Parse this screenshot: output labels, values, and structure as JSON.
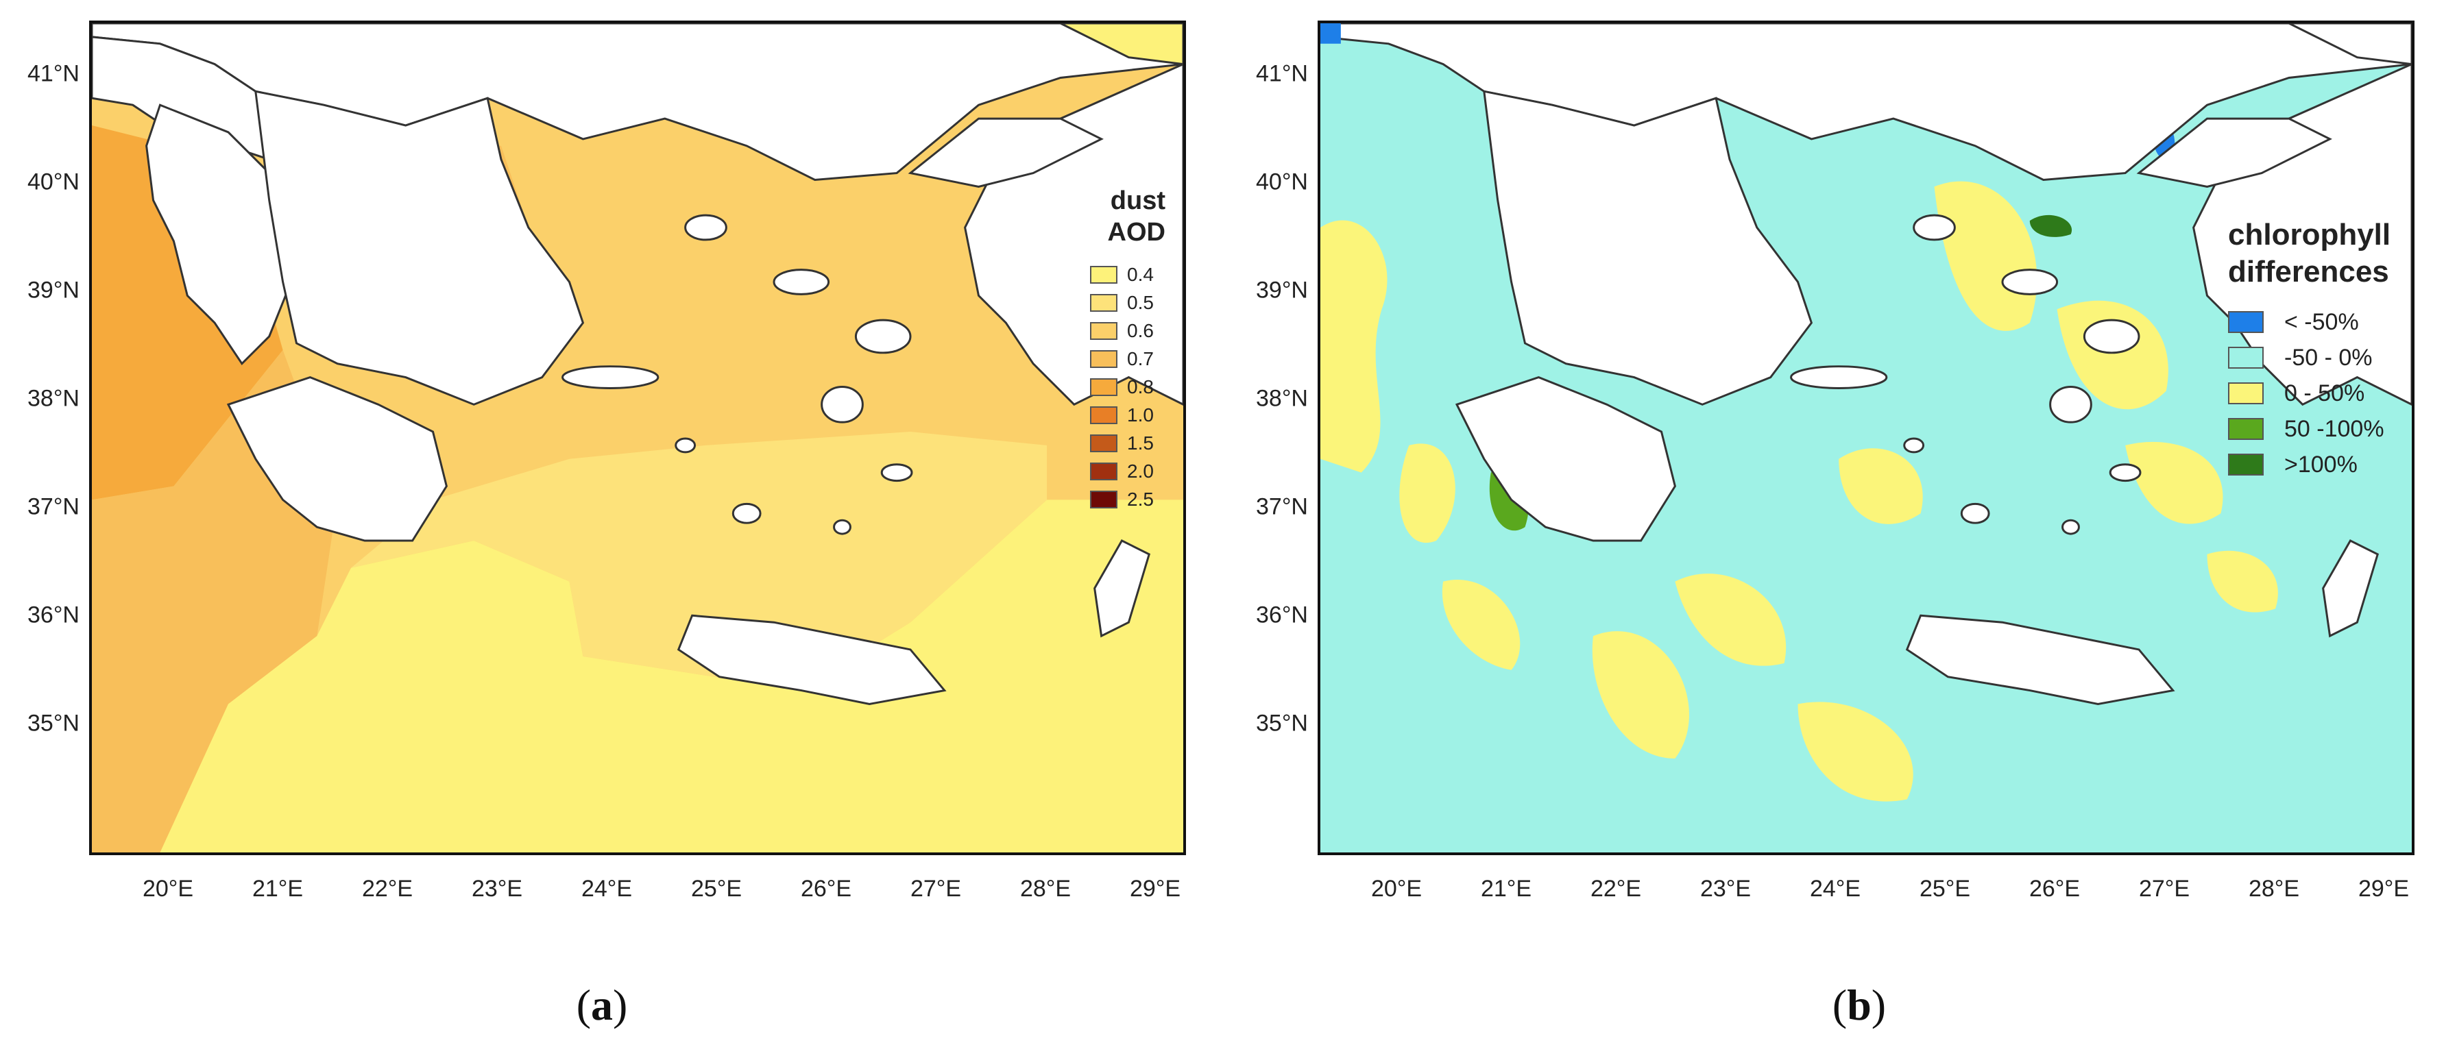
{
  "panels": [
    {
      "label": "a",
      "legend": {
        "title_line1": "dust",
        "title_line2": "AOD",
        "items": [
          {
            "label": "0.4",
            "color": "#fdf27a"
          },
          {
            "label": "0.5",
            "color": "#fde27a"
          },
          {
            "label": "0.6",
            "color": "#fbd06a"
          },
          {
            "label": "0.7",
            "color": "#f8bf5a"
          },
          {
            "label": "0.8",
            "color": "#f6aa3c"
          },
          {
            "label": "1.0",
            "color": "#e87f26"
          },
          {
            "label": "1.5",
            "color": "#c45a1a"
          },
          {
            "label": "2.0",
            "color": "#a03010"
          },
          {
            "label": "2.5",
            "color": "#6e0a06"
          }
        ]
      }
    },
    {
      "label": "b",
      "legend": {
        "title_line1": "chlorophyll",
        "title_line2": "differences",
        "items": [
          {
            "label": "< -50%",
            "color": "#1e7fe8"
          },
          {
            "label": "-50 - 0%",
            "color": "#9ff2e6"
          },
          {
            "label": "0 - 50%",
            "color": "#fbf57a"
          },
          {
            "label": "50 -100%",
            "color": "#5aa81e"
          },
          {
            "label": ">100%",
            "color": "#2e7a1a"
          }
        ]
      }
    }
  ],
  "x_ticks": [
    "20°E",
    "21°E",
    "22°E",
    "23°E",
    "24°E",
    "25°E",
    "26°E",
    "27°E",
    "28°E",
    "29°E"
  ],
  "y_ticks": [
    "41°N",
    "40°N",
    "39°N",
    "38°N",
    "37°N",
    "36°N",
    "35°N"
  ],
  "colors": {
    "land": "#ffffff",
    "coastline": "#333333"
  }
}
